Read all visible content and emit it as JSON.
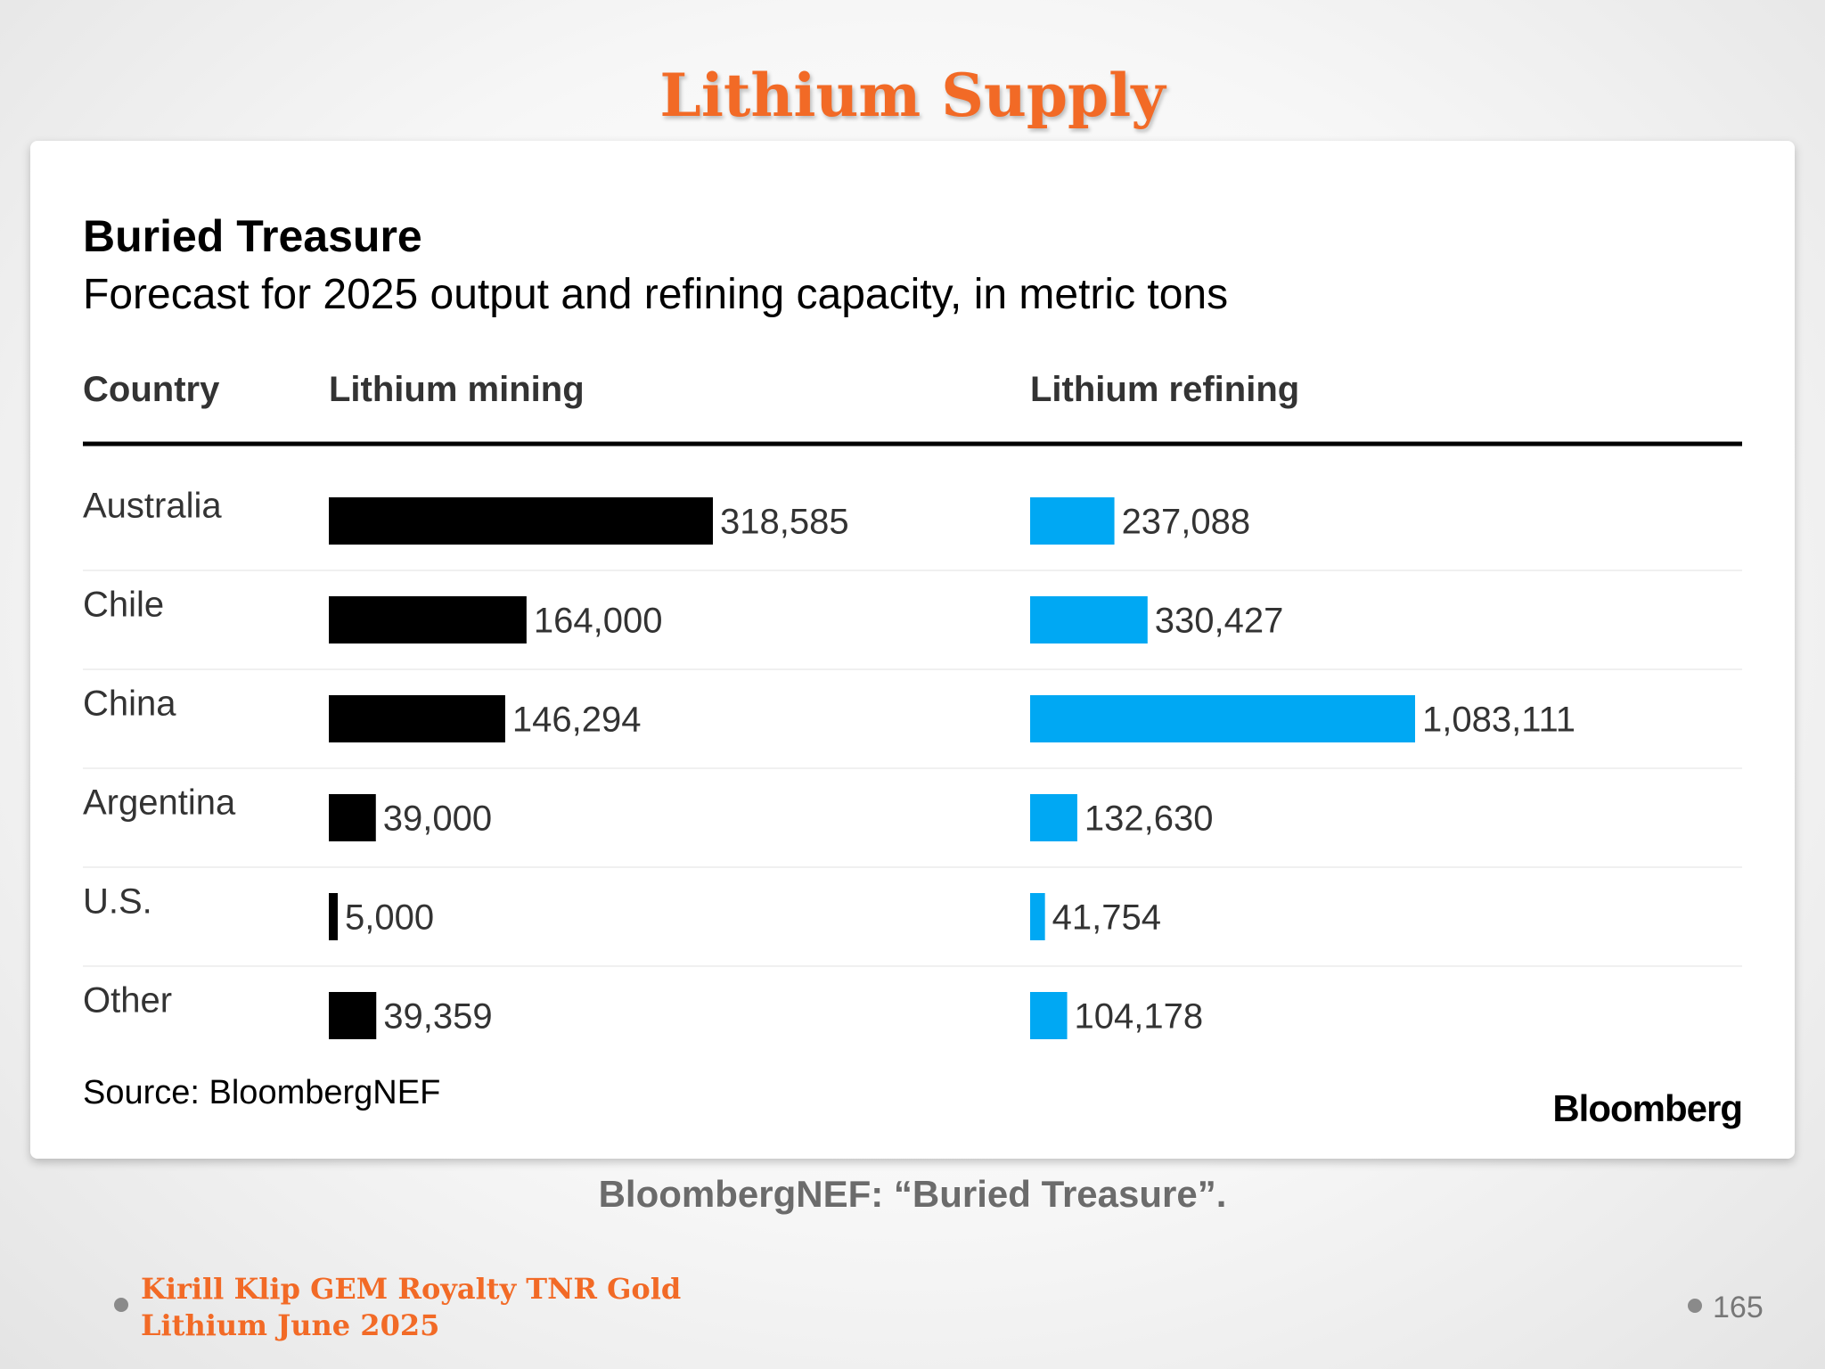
{
  "slide": {
    "title": "Lithium Supply",
    "caption": "BloombergNEF: “Buried Treasure”.",
    "footer_line1": "Kirill Klip GEM Royalty TNR Gold",
    "footer_line2": "Lithium June 2025",
    "page_number": "165"
  },
  "chart_data": {
    "type": "bar",
    "title": "Buried Treasure",
    "subtitle": "Forecast for 2025 output and refining capacity, in metric tons",
    "category_header": "Country",
    "categories": [
      "Australia",
      "Chile",
      "China",
      "Argentina",
      "U.S.",
      "Other"
    ],
    "series": [
      {
        "name": "Lithium mining",
        "values": [
          318585,
          164000,
          146294,
          39000,
          5000,
          39359
        ],
        "labels": [
          "318,585",
          "164,000",
          "146,294",
          "39,000",
          "5,000",
          "39,359"
        ],
        "color": "#000000"
      },
      {
        "name": "Lithium refining",
        "values": [
          237088,
          330427,
          1083111,
          132630,
          41754,
          104178
        ],
        "labels": [
          "237,088",
          "330,427",
          "1,083,111",
          "132,630",
          "41,754",
          "104,178"
        ],
        "color": "#00a8f3"
      }
    ],
    "source": "Source: BloombergNEF",
    "brand": "Bloomberg"
  }
}
